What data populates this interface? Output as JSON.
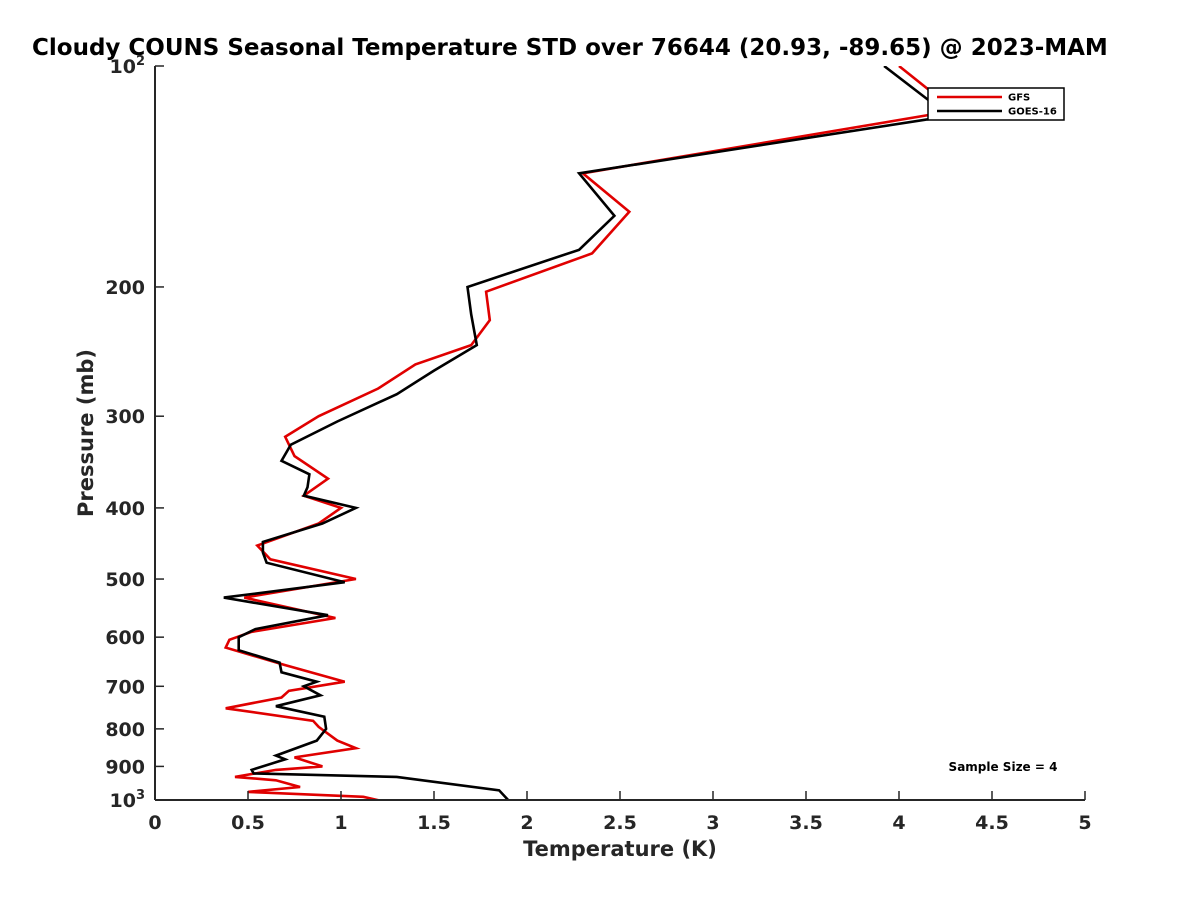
{
  "chart_data": {
    "type": "line",
    "title": "Cloudy COUNS Seasonal Temperature STD over 76644 (20.93, -89.65) @ 2023-MAM",
    "xlabel": "Temperature (K)",
    "ylabel": "Pressure (mb)",
    "xlim": [
      0,
      5
    ],
    "ylim": [
      100,
      1000
    ],
    "y_scale": "log",
    "y_reversed": true,
    "grid": false,
    "legend_position": "top-right",
    "x_ticks": [
      "0",
      "0.5",
      "1",
      "1.5",
      "2",
      "2.5",
      "3",
      "3.5",
      "4",
      "4.5",
      "5"
    ],
    "y_ticks": [
      {
        "value": 100,
        "base": "10",
        "exp": "2"
      },
      {
        "value": 200,
        "label": "200"
      },
      {
        "value": 300,
        "label": "300"
      },
      {
        "value": 400,
        "label": "400"
      },
      {
        "value": 500,
        "label": "500"
      },
      {
        "value": 600,
        "label": "600"
      },
      {
        "value": 700,
        "label": "700"
      },
      {
        "value": 800,
        "label": "800"
      },
      {
        "value": 900,
        "label": "900"
      },
      {
        "value": 1000,
        "base": "10",
        "exp": "3"
      }
    ],
    "annotation": "Sample Size = 4",
    "series": [
      {
        "name": "GFS",
        "color": "#e00000",
        "points": [
          [
            4.0,
            100
          ],
          [
            4.3,
            115
          ],
          [
            2.3,
            140
          ],
          [
            2.55,
            158
          ],
          [
            2.35,
            180
          ],
          [
            1.78,
            203
          ],
          [
            1.8,
            222
          ],
          [
            1.7,
            240
          ],
          [
            1.4,
            255
          ],
          [
            1.2,
            275
          ],
          [
            0.88,
            300
          ],
          [
            0.7,
            320
          ],
          [
            0.75,
            340
          ],
          [
            0.93,
            365
          ],
          [
            0.8,
            385
          ],
          [
            1.0,
            400
          ],
          [
            0.88,
            420
          ],
          [
            0.55,
            450
          ],
          [
            0.62,
            470
          ],
          [
            1.08,
            500
          ],
          [
            0.48,
            530
          ],
          [
            0.97,
            565
          ],
          [
            0.52,
            590
          ],
          [
            0.4,
            605
          ],
          [
            0.38,
            620
          ],
          [
            0.7,
            655
          ],
          [
            1.02,
            690
          ],
          [
            0.72,
            710
          ],
          [
            0.68,
            725
          ],
          [
            0.38,
            750
          ],
          [
            0.85,
            780
          ],
          [
            0.88,
            795
          ],
          [
            0.98,
            830
          ],
          [
            1.08,
            850
          ],
          [
            0.75,
            875
          ],
          [
            0.9,
            900
          ],
          [
            0.65,
            910
          ],
          [
            0.43,
            930
          ],
          [
            0.65,
            940
          ],
          [
            0.78,
            960
          ],
          [
            0.5,
            975
          ],
          [
            1.12,
            990
          ],
          [
            1.27,
            1010
          ]
        ]
      },
      {
        "name": "GOES-16",
        "color": "#000000",
        "points": [
          [
            3.92,
            100
          ],
          [
            4.27,
            117
          ],
          [
            2.28,
            140
          ],
          [
            2.47,
            160
          ],
          [
            2.28,
            178
          ],
          [
            1.68,
            200
          ],
          [
            1.7,
            218
          ],
          [
            1.73,
            240
          ],
          [
            1.5,
            260
          ],
          [
            1.3,
            280
          ],
          [
            0.98,
            305
          ],
          [
            0.73,
            328
          ],
          [
            0.68,
            345
          ],
          [
            0.83,
            360
          ],
          [
            0.82,
            375
          ],
          [
            0.8,
            385
          ],
          [
            1.08,
            400
          ],
          [
            0.9,
            420
          ],
          [
            0.58,
            445
          ],
          [
            0.58,
            460
          ],
          [
            0.6,
            475
          ],
          [
            1.02,
            505
          ],
          [
            0.37,
            530
          ],
          [
            0.93,
            560
          ],
          [
            0.54,
            585
          ],
          [
            0.45,
            600
          ],
          [
            0.45,
            625
          ],
          [
            0.67,
            650
          ],
          [
            0.68,
            670
          ],
          [
            0.87,
            690
          ],
          [
            0.8,
            700
          ],
          [
            0.89,
            720
          ],
          [
            0.65,
            745
          ],
          [
            0.91,
            770
          ],
          [
            0.92,
            800
          ],
          [
            0.87,
            830
          ],
          [
            0.65,
            870
          ],
          [
            0.7,
            880
          ],
          [
            0.52,
            910
          ],
          [
            0.53,
            920
          ],
          [
            1.3,
            930
          ],
          [
            1.85,
            970
          ],
          [
            1.93,
            1020
          ]
        ]
      }
    ]
  }
}
